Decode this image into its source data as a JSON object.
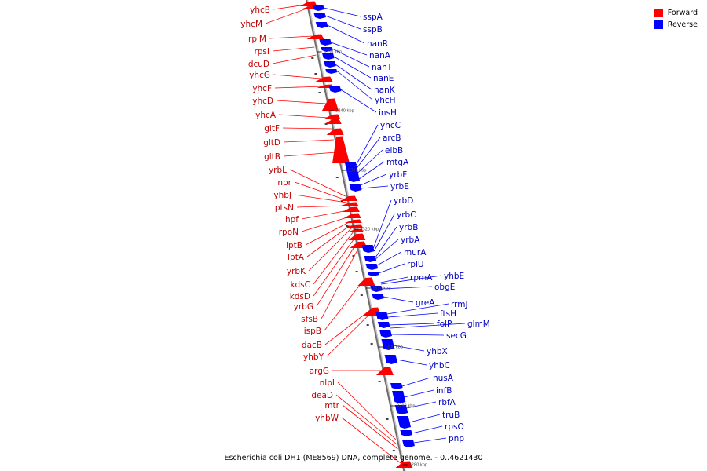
{
  "legend": {
    "forward": {
      "label": "Forward",
      "color": "#ff0000"
    },
    "reverse": {
      "label": "Reverse",
      "color": "#0000ff"
    }
  },
  "caption": "Escherichia coli DH1 (ME8569) DNA, complete genome. - 0..4621430",
  "ticks": [
    "3350 kbp",
    "3340 kbp",
    "3330 kbp",
    "3320 kbp",
    "3310 kbp",
    "3300 kbp",
    "3290 kbp",
    "3280 kbp"
  ],
  "forward_genes": [
    "yhcB",
    "yhcM",
    "rplM",
    "rpsI",
    "dcuD",
    "yhcG",
    "yhcF",
    "yhcD",
    "yhcA",
    "gltF",
    "gltD",
    "gltB",
    "yrbL",
    "npr",
    "yhbJ",
    "ptsN",
    "hpf",
    "rpoN",
    "lptB",
    "lptA",
    "yrbK",
    "kdsC",
    "kdsD",
    "yrbG",
    "sfsB",
    "ispB",
    "dacB",
    "yhbY",
    "argG",
    "nlpI",
    "deaD",
    "mtr",
    "yhbW"
  ],
  "reverse_genes": [
    "sspA",
    "sspB",
    "nanR",
    "nanA",
    "nanT",
    "nanE",
    "nanK",
    "yhcH",
    "insH",
    "yhcC",
    "arcB",
    "elbB",
    "mtgA",
    "yrbF",
    "yrbE",
    "yrbD",
    "yrbC",
    "yrbB",
    "yrbA",
    "murA",
    "rplU",
    "rpmA",
    "yhbE",
    "obgE",
    "greA",
    "rrmJ",
    "ftsH",
    "folP",
    "glmM",
    "secG",
    "yhbX",
    "yhbC",
    "nusA",
    "infB",
    "rbfA",
    "truB",
    "rpsO",
    "pnp"
  ]
}
